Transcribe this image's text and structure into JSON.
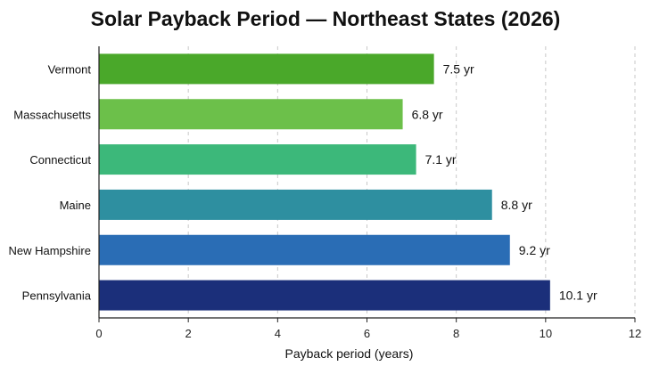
{
  "chart_data": {
    "type": "bar",
    "orientation": "horizontal",
    "title": "Solar Payback Period — Northeast States (2026)",
    "xlabel": "Payback period (years)",
    "ylabel": "",
    "categories": [
      "Vermont",
      "Massachusetts",
      "Connecticut",
      "Maine",
      "New Hampshire",
      "Pennsylvania"
    ],
    "values": [
      7.5,
      6.8,
      7.1,
      8.8,
      9.2,
      10.1
    ],
    "value_labels": [
      "7.5 yr",
      "6.8 yr",
      "7.1 yr",
      "8.8 yr",
      "9.2 yr",
      "10.1 yr"
    ],
    "colors": [
      "#4aa82a",
      "#6cc04a",
      "#3cb87a",
      "#2e8fa0",
      "#2a6db5",
      "#1b2f7a"
    ],
    "xlim": [
      0,
      12
    ],
    "xticks": [
      0,
      2,
      4,
      6,
      8,
      10,
      12
    ],
    "grid": true
  }
}
